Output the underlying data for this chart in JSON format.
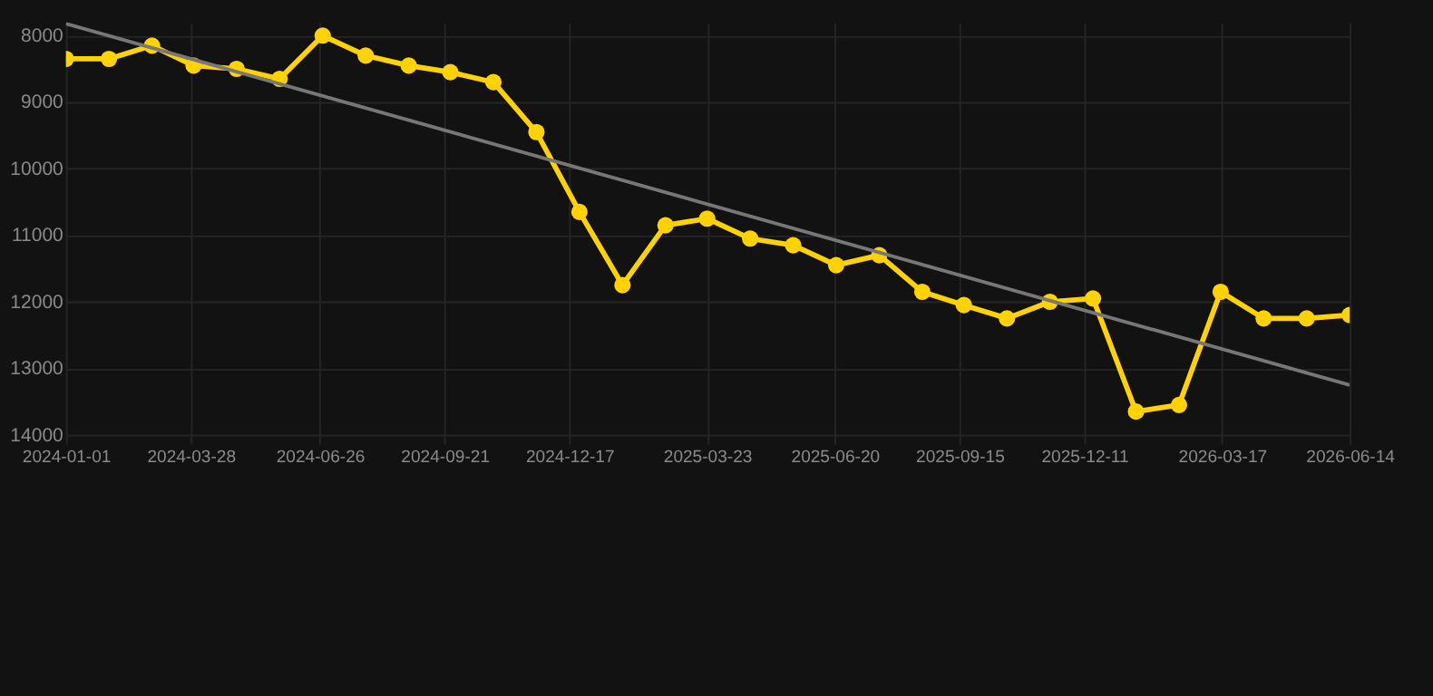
{
  "chart_data": {
    "type": "line",
    "x": [
      "2024-01-01",
      "2024-01-31",
      "2024-03-01",
      "2024-03-30",
      "2024-04-29",
      "2024-05-29",
      "2024-06-28",
      "2024-07-28",
      "2024-08-27",
      "2024-09-25",
      "2024-10-25",
      "2024-11-24",
      "2024-12-24",
      "2025-01-23",
      "2025-02-22",
      "2025-03-23",
      "2025-04-22",
      "2025-05-22",
      "2025-06-21",
      "2025-07-21",
      "2025-08-20",
      "2025-09-18",
      "2025-10-18",
      "2025-11-17",
      "2025-12-17",
      "2026-01-16",
      "2026-02-15",
      "2026-03-16",
      "2026-04-15",
      "2026-05-15",
      "2026-06-14"
    ],
    "series": [
      {
        "color": "#ffd200",
        "marker": "circle",
        "line_style": "solid",
        "values": [
          8350,
          8350,
          8150,
          8450,
          8500,
          8650,
          8000,
          8300,
          8450,
          8550,
          8700,
          9450,
          10650,
          11750,
          10850,
          10750,
          11050,
          11150,
          11450,
          11300,
          11850,
          12050,
          12250,
          12000,
          11950,
          13650,
          13550,
          11850,
          12250,
          12250,
          12200
        ]
      },
      {
        "type": "line",
        "color": "#777777",
        "marker": "none",
        "line_style": "solid",
        "x": [
          "2024-01-01",
          "2026-06-14"
        ],
        "values": [
          7820,
          13250
        ]
      }
    ],
    "ylim": [
      14000,
      7800
    ],
    "yticks": [
      8000,
      9000,
      10000,
      11000,
      12000,
      13000,
      14000
    ],
    "xlim": [
      "2024-01-01",
      "2026-06-14"
    ],
    "xticks": [
      "2024-01-01",
      "2024-03-28",
      "2024-06-26",
      "2024-09-21",
      "2024-12-17",
      "2025-03-23",
      "2025-06-20",
      "2025-09-15",
      "2025-12-11",
      "2026-03-17",
      "2026-06-14"
    ],
    "grid": true
  }
}
